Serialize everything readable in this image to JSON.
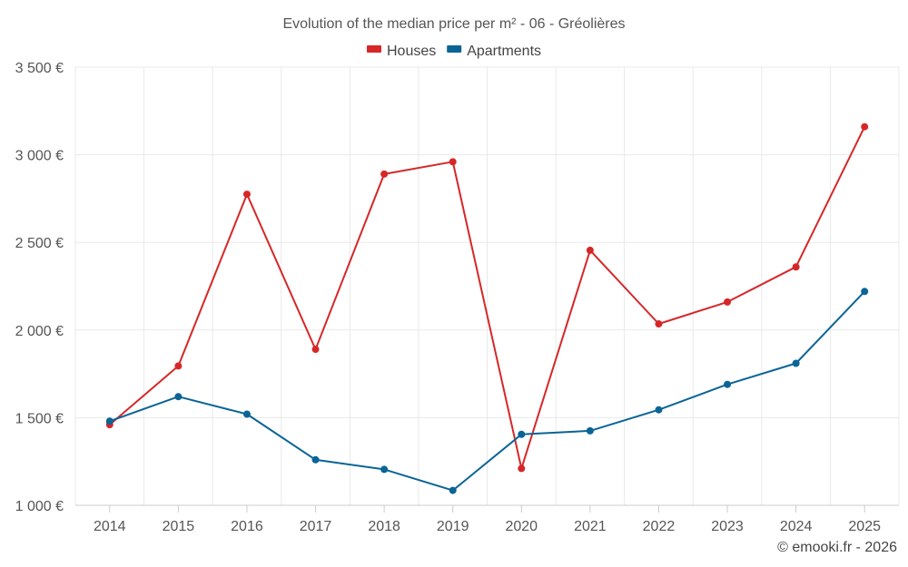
{
  "chart_data": {
    "type": "line",
    "title": "Evolution of the median price per m² - 06 - Gréolières",
    "xlabel": "",
    "ylabel": "",
    "ylim": [
      1000,
      3500
    ],
    "yticks": [
      1000,
      1500,
      2000,
      2500,
      3000,
      3500
    ],
    "ytick_labels": [
      "1 000 €",
      "1 500 €",
      "2 000 €",
      "2 500 €",
      "3 000 €",
      "3 500 €"
    ],
    "categories": [
      "2014",
      "2015",
      "2016",
      "2017",
      "2018",
      "2019",
      "2020",
      "2021",
      "2022",
      "2023",
      "2024",
      "2025"
    ],
    "grid": true,
    "legend_position": "top-center",
    "series": [
      {
        "name": "Houses",
        "color": "#d62728",
        "values": [
          1460,
          1795,
          2775,
          1890,
          2890,
          2960,
          1210,
          2455,
          2035,
          2160,
          2360,
          3160
        ]
      },
      {
        "name": "Apartments",
        "color": "#0a6496",
        "values": [
          1480,
          1620,
          1520,
          1260,
          1205,
          1085,
          1405,
          1425,
          1545,
          1690,
          1810,
          2220
        ]
      }
    ]
  },
  "credit": "© emooki.fr - 2026"
}
